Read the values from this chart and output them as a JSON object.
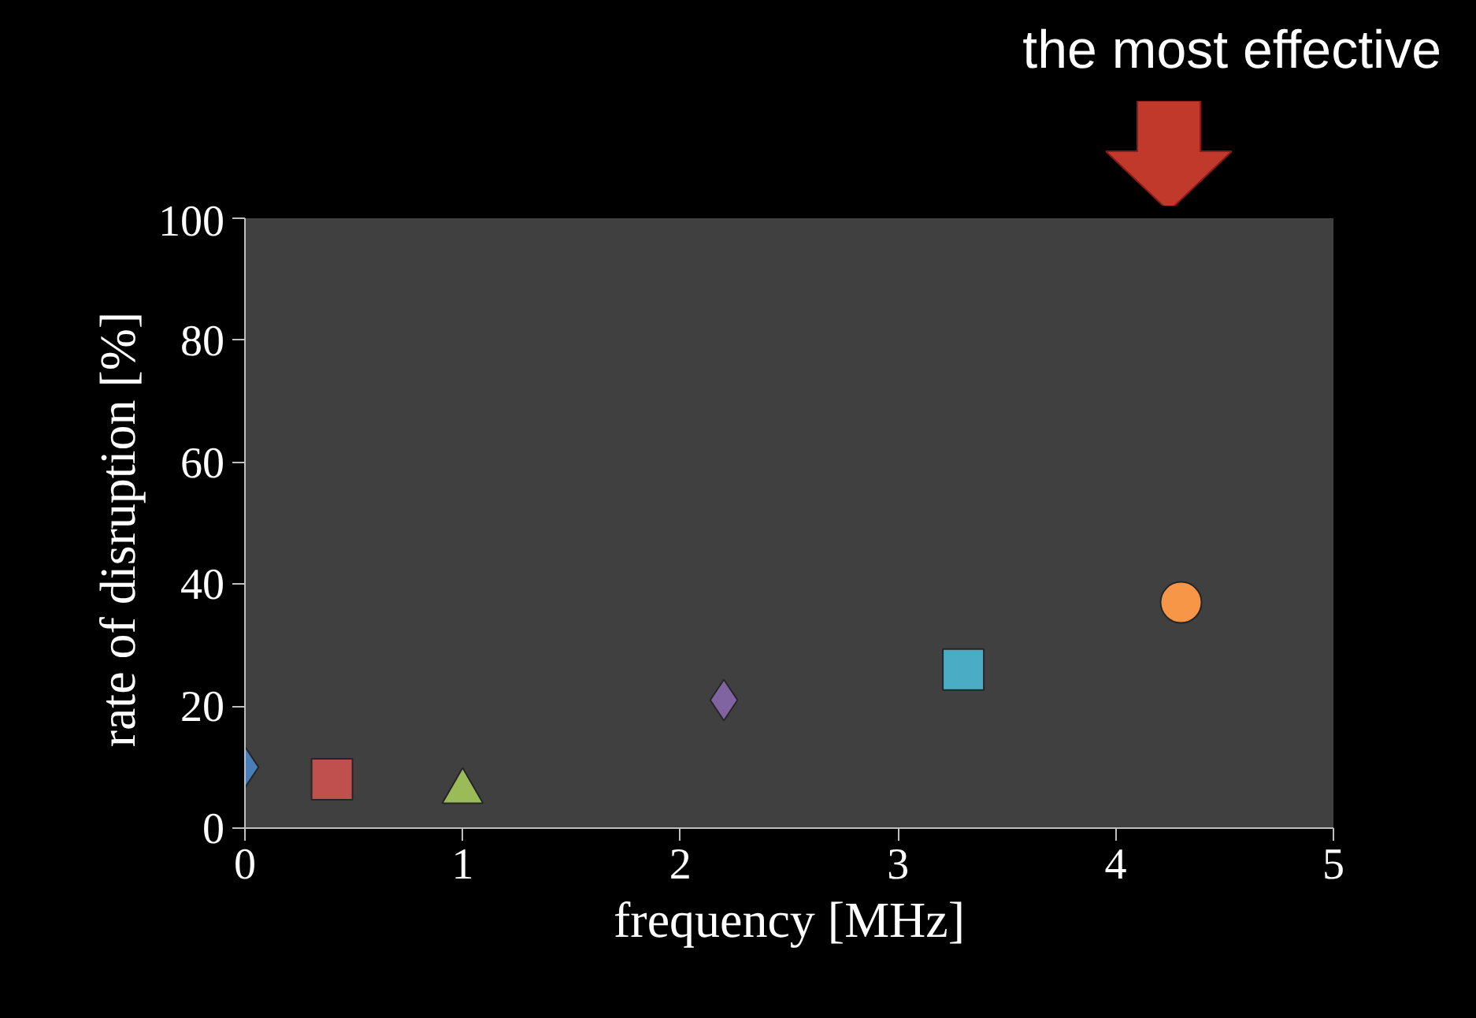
{
  "chart_data": {
    "type": "scatter",
    "xlabel": "frequency [MHz]",
    "ylabel": "rate of disruption  [%]",
    "xlim": [
      0,
      5
    ],
    "ylim": [
      0,
      100
    ],
    "xticks": [
      0,
      1,
      2,
      3,
      4,
      5
    ],
    "yticks": [
      0,
      20,
      40,
      60,
      80,
      100
    ],
    "grid": false,
    "annotations": [
      "the most effective"
    ],
    "series": [
      {
        "color": "#4a7ebb",
        "marker": "diamond",
        "x": [
          0
        ],
        "values": [
          10
        ]
      },
      {
        "color": "#c0504d",
        "marker": "square",
        "x": [
          0.4
        ],
        "values": [
          8
        ]
      },
      {
        "color": "#9bbb59",
        "marker": "triangle",
        "x": [
          1.0
        ],
        "values": [
          6
        ]
      },
      {
        "color": "#8064a2",
        "marker": "diamond",
        "x": [
          2.2
        ],
        "values": [
          21
        ]
      },
      {
        "color": "#4bacc6",
        "marker": "square",
        "x": [
          3.3
        ],
        "values": [
          26
        ]
      },
      {
        "color": "#f79646",
        "marker": "circle",
        "x": [
          4.3
        ],
        "values": [
          37
        ]
      }
    ]
  }
}
